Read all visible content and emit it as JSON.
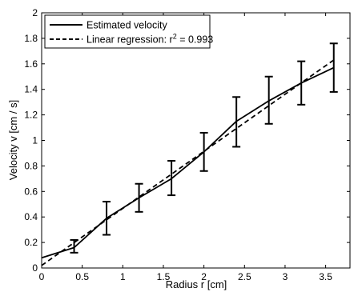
{
  "chart_data": {
    "type": "line",
    "title": "",
    "xlabel": "Radius r [cm]",
    "ylabel": "Velocity v [cm / s]",
    "xlim": [
      0,
      3.8
    ],
    "ylim": [
      0,
      2
    ],
    "grid": false,
    "legend_position": "top-left",
    "x_ticks": [
      0,
      0.5,
      1,
      1.5,
      2,
      2.5,
      3,
      3.5
    ],
    "x_tick_labels": [
      "0",
      "0.5",
      "1",
      "1.5",
      "2",
      "2.5",
      "3",
      "3.5"
    ],
    "y_ticks": [
      0,
      0.2,
      0.4,
      0.6,
      0.8,
      1,
      1.2,
      1.4,
      1.6,
      1.8,
      2
    ],
    "y_tick_labels": [
      "0",
      "0.2",
      "0.4",
      "0.6",
      "0.8",
      "1",
      "1.2",
      "1.4",
      "1.6",
      "1.8",
      "2"
    ],
    "series": [
      {
        "name": "Estimated velocity",
        "style": "solid",
        "x": [
          0,
          0.4,
          0.8,
          1.2,
          1.6,
          2.0,
          2.4,
          2.8,
          3.2,
          3.6
        ],
        "y": [
          0.08,
          0.16,
          0.39,
          0.55,
          0.7,
          0.91,
          1.15,
          1.31,
          1.45,
          1.57
        ],
        "error_x": [
          0.4,
          0.8,
          1.2,
          1.6,
          2.0,
          2.4,
          2.8,
          3.2,
          3.6
        ],
        "error_low": [
          0.12,
          0.26,
          0.44,
          0.57,
          0.76,
          0.95,
          1.13,
          1.28,
          1.38
        ],
        "error_high": [
          0.22,
          0.52,
          0.66,
          0.84,
          1.06,
          1.34,
          1.5,
          1.62,
          1.76
        ]
      },
      {
        "name": "Linear regression: r",
        "name_superscript": "2",
        "name_suffix": " = 0.993",
        "style": "dashed",
        "x": [
          0,
          3.6
        ],
        "y": [
          0.02,
          1.63
        ]
      }
    ],
    "colors": {
      "line": "#000000",
      "background": "#ffffff",
      "axes": "#000000"
    }
  }
}
